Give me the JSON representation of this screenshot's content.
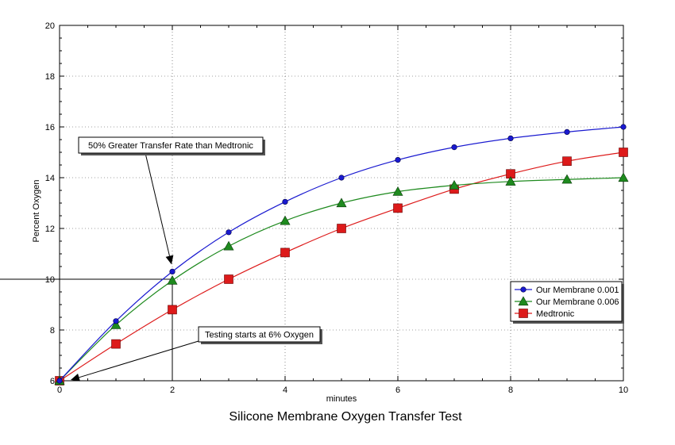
{
  "chart_data": {
    "type": "line",
    "title": "Silicone Membrane Oxygen Transfer Test",
    "xlabel": "minutes",
    "ylabel": "Percent Oxygen",
    "xlim": [
      0,
      10
    ],
    "ylim": [
      6,
      20
    ],
    "xticks": [
      0,
      2,
      4,
      6,
      8,
      10
    ],
    "yticks": [
      6,
      8,
      10,
      12,
      14,
      16,
      18,
      20
    ],
    "grid": true,
    "legend_position": "lower-right",
    "series": [
      {
        "name": "Our Membrane 0.001",
        "color": "#1a1ad0",
        "marker": "circle",
        "x": [
          0,
          1,
          2,
          3,
          4,
          5,
          6,
          7,
          8,
          9,
          10
        ],
        "y": [
          6.0,
          8.35,
          10.3,
          11.85,
          13.05,
          14.0,
          14.7,
          15.2,
          15.55,
          15.8,
          16.0
        ]
      },
      {
        "name": "Our Membrane 0.006",
        "color": "#1e8a1e",
        "marker": "triangle",
        "x": [
          0,
          1,
          2,
          3,
          4,
          5,
          6,
          7,
          8,
          9,
          10
        ],
        "y": [
          6.0,
          8.2,
          9.95,
          11.3,
          12.3,
          13.0,
          13.45,
          13.7,
          13.85,
          13.93,
          14.0
        ]
      },
      {
        "name": "Medtronic",
        "color": "#dd1a1a",
        "marker": "square",
        "x": [
          0,
          1,
          2,
          3,
          4,
          5,
          6,
          7,
          8,
          9,
          10
        ],
        "y": [
          6.0,
          7.45,
          8.8,
          10.0,
          11.05,
          12.0,
          12.8,
          13.55,
          14.15,
          14.65,
          15.0
        ]
      }
    ],
    "annotations": [
      {
        "text": "50% Greater Transfer Rate than Medtronic",
        "point": [
          2,
          10.3
        ]
      },
      {
        "text": "Testing starts at 6% Oxygen",
        "point": [
          0,
          6
        ]
      }
    ]
  }
}
